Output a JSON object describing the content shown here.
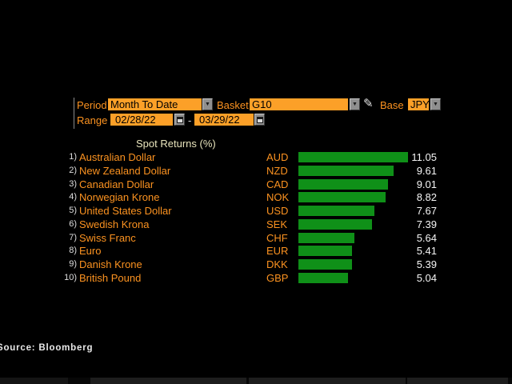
{
  "controls": {
    "period_label": "Period",
    "period_value": "Month To Date",
    "basket_label": "Basket",
    "basket_value": "G10",
    "base_label": "Base",
    "base_value": "JPY",
    "range_label": "Range",
    "range_start": "02/28/22",
    "range_separator": "-",
    "range_end": "03/29/22",
    "dropdown_icon_glyph": "▼",
    "pencil_icon_glyph": "✎"
  },
  "chart": {
    "title": "Spot Returns (%)",
    "rows": [
      {
        "rank": "1)",
        "name": "Australian Dollar",
        "code": "AUD",
        "value": 11.05,
        "value_label": "11.05"
      },
      {
        "rank": "2)",
        "name": "New Zealand Dollar",
        "code": "NZD",
        "value": 9.61,
        "value_label": "9.61"
      },
      {
        "rank": "3)",
        "name": "Canadian Dollar",
        "code": "CAD",
        "value": 9.01,
        "value_label": "9.01"
      },
      {
        "rank": "4)",
        "name": "Norwegian Krone",
        "code": "NOK",
        "value": 8.82,
        "value_label": "8.82"
      },
      {
        "rank": "5)",
        "name": "United States Dollar",
        "code": "USD",
        "value": 7.67,
        "value_label": "7.67"
      },
      {
        "rank": "6)",
        "name": "Swedish Krona",
        "code": "SEK",
        "value": 7.39,
        "value_label": "7.39"
      },
      {
        "rank": "7)",
        "name": "Swiss Franc",
        "code": "CHF",
        "value": 5.64,
        "value_label": "5.64"
      },
      {
        "rank": "8)",
        "name": "Euro",
        "code": "EUR",
        "value": 5.41,
        "value_label": "5.41"
      },
      {
        "rank": "9)",
        "name": "Danish Krone",
        "code": "DKK",
        "value": 5.39,
        "value_label": "5.39"
      },
      {
        "rank": "10)",
        "name": "British Pound",
        "code": "GBP",
        "value": 5.04,
        "value_label": "5.04"
      }
    ]
  },
  "chart_data": {
    "type": "bar",
    "orientation": "horizontal",
    "title": "Spot Returns (%)",
    "categories": [
      "Australian Dollar",
      "New Zealand Dollar",
      "Canadian Dollar",
      "Norwegian Krone",
      "United States Dollar",
      "Swedish Krona",
      "Swiss Franc",
      "Euro",
      "Danish Krone",
      "British Pound"
    ],
    "tickers": [
      "AUD",
      "NZD",
      "CAD",
      "NOK",
      "USD",
      "SEK",
      "CHF",
      "EUR",
      "DKK",
      "GBP"
    ],
    "values": [
      11.05,
      9.61,
      9.01,
      8.82,
      7.67,
      7.39,
      5.64,
      5.41,
      5.39,
      5.04
    ],
    "xlim": [
      0,
      11.05
    ],
    "period": "Month To Date",
    "basket": "G10",
    "base": "JPY",
    "range": [
      "02/28/22",
      "03/29/22"
    ],
    "grid": false,
    "legend": false
  },
  "footer": {
    "source_label": "Source: Bloomberg"
  },
  "colors": {
    "background": "#000000",
    "amber_text": "#fb9220",
    "field_background": "#fca028",
    "field_text": "#000000",
    "bar_green": "#0f9018",
    "title_cream": "#e9e5bd",
    "rank_gray": "#dedede",
    "value_white": "#f5f5f5"
  }
}
